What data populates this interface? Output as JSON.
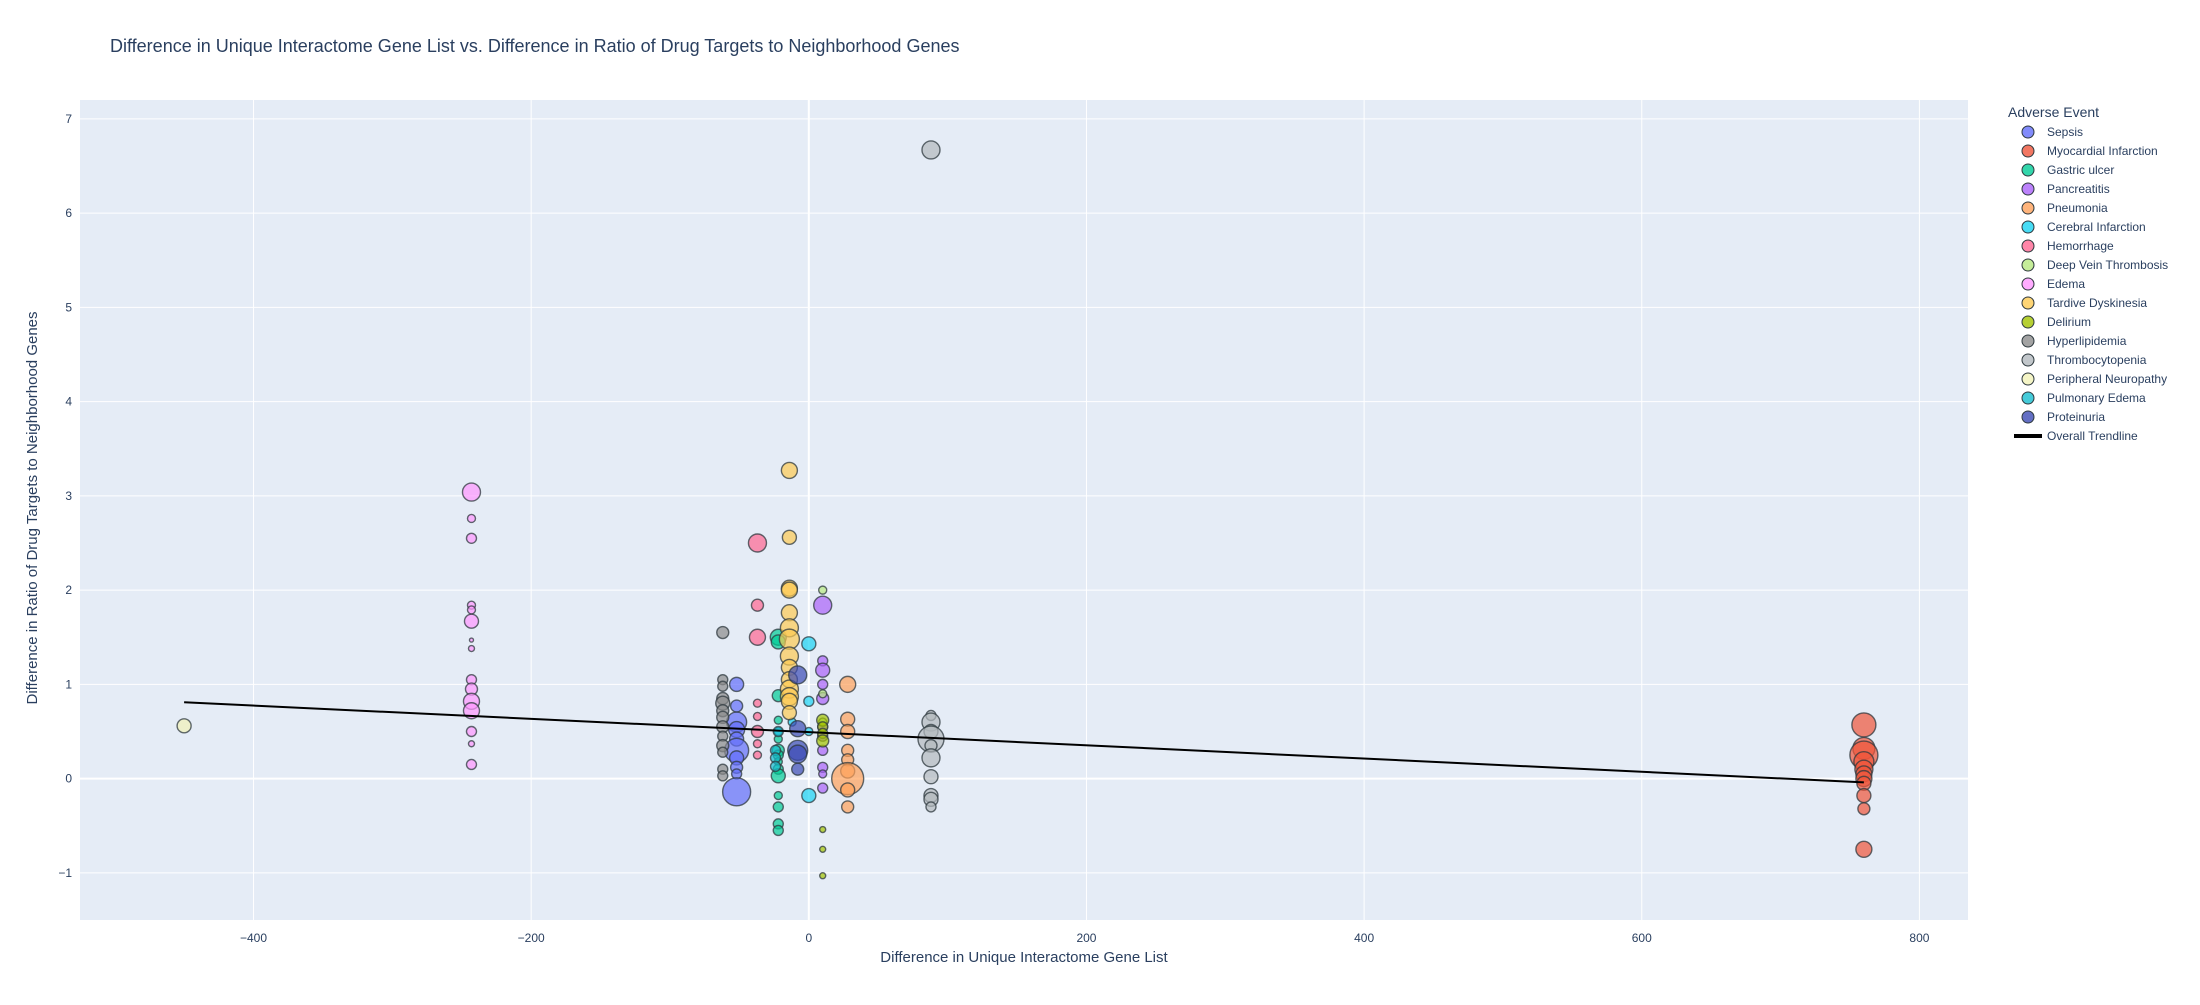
{
  "chart_data": {
    "type": "scatter",
    "title": "Difference in Unique Interactome Gene List vs. Difference in Ratio of Drug Targets to Neighborhood Genes",
    "xlabel": "Difference in Unique Interactome Gene List",
    "ylabel": "Difference in Ratio of Drug Targets to Neighborhood Genes",
    "xlim": [
      -525,
      835
    ],
    "ylim": [
      -1.5,
      7.2
    ],
    "x_ticks": [
      -400,
      -200,
      0,
      200,
      400,
      600,
      800
    ],
    "y_ticks": [
      -1,
      0,
      1,
      2,
      3,
      4,
      5,
      6,
      7
    ],
    "x_tick_labels": [
      "−400",
      "−200",
      "0",
      "200",
      "400",
      "600",
      "800"
    ],
    "y_tick_labels": [
      "−1",
      "0",
      "1",
      "2",
      "3",
      "4",
      "5",
      "6",
      "7"
    ],
    "grid": true,
    "legend_title": "Adverse Event",
    "legend_position": "right",
    "series": [
      {
        "name": "Sepsis",
        "color": "#636efa",
        "points": [
          [
            -52,
            1.0,
            7
          ],
          [
            -52,
            0.77,
            6
          ],
          [
            -52,
            0.6,
            10
          ],
          [
            -52,
            0.52,
            8
          ],
          [
            -52,
            0.42,
            7
          ],
          [
            -52,
            0.3,
            12
          ],
          [
            -52,
            0.22,
            7
          ],
          [
            -52,
            0.12,
            6
          ],
          [
            -52,
            0.05,
            5
          ],
          [
            -52,
            -0.14,
            14
          ]
        ]
      },
      {
        "name": "Myocardial Infarction",
        "color": "#ef553b",
        "points": [
          [
            760,
            0.57,
            12
          ],
          [
            760,
            0.32,
            11
          ],
          [
            760,
            0.25,
            14
          ],
          [
            760,
            0.18,
            10
          ],
          [
            760,
            0.1,
            9
          ],
          [
            760,
            0.05,
            8
          ],
          [
            760,
            0.0,
            8
          ],
          [
            760,
            -0.05,
            7
          ],
          [
            760,
            -0.18,
            7
          ],
          [
            760,
            -0.32,
            6
          ],
          [
            760,
            -0.75,
            8
          ]
        ]
      },
      {
        "name": "Gastric ulcer",
        "color": "#00cc96",
        "points": [
          [
            -22,
            1.5,
            8
          ],
          [
            -22,
            1.45,
            7
          ],
          [
            -22,
            0.88,
            6
          ],
          [
            -22,
            0.62,
            4
          ],
          [
            -22,
            0.42,
            4
          ],
          [
            -22,
            0.3,
            6
          ],
          [
            -22,
            0.25,
            5
          ],
          [
            -22,
            0.18,
            4
          ],
          [
            -22,
            0.1,
            5
          ],
          [
            -22,
            0.03,
            7
          ],
          [
            -22,
            -0.18,
            4
          ],
          [
            -22,
            -0.3,
            5
          ],
          [
            -22,
            -0.48,
            5
          ],
          [
            -22,
            -0.55,
            5
          ]
        ]
      },
      {
        "name": "Pancreatitis",
        "color": "#ab63fa",
        "points": [
          [
            10,
            1.84,
            9
          ],
          [
            10,
            1.25,
            5
          ],
          [
            10,
            1.15,
            7
          ],
          [
            10,
            1.0,
            5
          ],
          [
            10,
            0.85,
            6
          ],
          [
            10,
            0.55,
            5
          ],
          [
            10,
            0.45,
            5
          ],
          [
            10,
            0.3,
            5
          ],
          [
            10,
            0.12,
            5
          ],
          [
            10,
            0.05,
            4
          ],
          [
            10,
            -0.1,
            5
          ]
        ]
      },
      {
        "name": "Pneumonia",
        "color": "#ffa15a",
        "points": [
          [
            28,
            1.0,
            8
          ],
          [
            28,
            0.63,
            7
          ],
          [
            28,
            0.5,
            7
          ],
          [
            28,
            0.3,
            6
          ],
          [
            28,
            0.2,
            6
          ],
          [
            28,
            0.08,
            7
          ],
          [
            28,
            0.0,
            16
          ],
          [
            28,
            -0.12,
            7
          ],
          [
            28,
            -0.3,
            6
          ]
        ]
      },
      {
        "name": "Cerebral Infarction",
        "color": "#19d3f3",
        "points": [
          [
            0,
            1.43,
            7
          ],
          [
            0,
            0.82,
            5
          ],
          [
            0,
            0.5,
            4
          ],
          [
            0,
            -0.18,
            7
          ],
          [
            -12,
            0.6,
            4
          ],
          [
            -22,
            0.5,
            4
          ]
        ]
      },
      {
        "name": "Hemorrhage",
        "color": "#ff6692",
        "points": [
          [
            -37,
            2.5,
            9
          ],
          [
            -37,
            1.84,
            6
          ],
          [
            -37,
            1.5,
            8
          ],
          [
            -37,
            0.8,
            4
          ],
          [
            -37,
            0.66,
            4
          ],
          [
            -37,
            0.5,
            6
          ],
          [
            -37,
            0.37,
            4
          ],
          [
            -37,
            0.25,
            4
          ]
        ]
      },
      {
        "name": "Deep Vein Thrombosis",
        "color": "#b6e880",
        "points": [
          [
            10,
            2.0,
            4
          ],
          [
            10,
            0.9,
            4
          ],
          [
            10,
            0.6,
            4
          ]
        ]
      },
      {
        "name": "Edema",
        "color": "#ff97ff",
        "points": [
          [
            -243,
            3.04,
            9
          ],
          [
            -243,
            2.76,
            4
          ],
          [
            -243,
            2.55,
            5
          ],
          [
            -243,
            1.84,
            4
          ],
          [
            -243,
            1.79,
            4
          ],
          [
            -243,
            1.67,
            7
          ],
          [
            -243,
            1.47,
            2
          ],
          [
            -243,
            1.38,
            3
          ],
          [
            -243,
            1.05,
            5
          ],
          [
            -243,
            0.95,
            6
          ],
          [
            -243,
            0.82,
            8
          ],
          [
            -243,
            0.72,
            8
          ],
          [
            -243,
            0.5,
            5
          ],
          [
            -243,
            0.37,
            3
          ],
          [
            -243,
            0.15,
            5
          ]
        ]
      },
      {
        "name": "Tardive Dyskinesia",
        "color": "#fecb52",
        "points": [
          [
            -14,
            3.27,
            8
          ],
          [
            -14,
            2.56,
            7
          ],
          [
            -14,
            2.02,
            8
          ],
          [
            -14,
            2.0,
            8
          ],
          [
            -14,
            1.76,
            8
          ],
          [
            -14,
            1.6,
            9
          ],
          [
            -14,
            1.48,
            10
          ],
          [
            -14,
            1.3,
            9
          ],
          [
            -14,
            1.18,
            8
          ],
          [
            -14,
            1.05,
            8
          ],
          [
            -14,
            0.95,
            9
          ],
          [
            -14,
            0.87,
            9
          ],
          [
            -14,
            0.82,
            8
          ],
          [
            -14,
            0.7,
            7
          ]
        ]
      },
      {
        "name": "Delirium",
        "color": "#a4c400",
        "points": [
          [
            10,
            0.62,
            6
          ],
          [
            10,
            0.55,
            5
          ],
          [
            10,
            0.48,
            5
          ],
          [
            10,
            0.4,
            6
          ],
          [
            10,
            -0.54,
            3
          ],
          [
            10,
            -0.75,
            3
          ],
          [
            10,
            -1.03,
            3
          ]
        ]
      },
      {
        "name": "Hyperlipidemia",
        "color": "#8c8c8c",
        "points": [
          [
            -62,
            1.55,
            6
          ],
          [
            -62,
            1.05,
            5
          ],
          [
            -62,
            0.98,
            5
          ],
          [
            -62,
            0.85,
            6
          ],
          [
            -62,
            0.8,
            7
          ],
          [
            -62,
            0.72,
            6
          ],
          [
            -62,
            0.65,
            6
          ],
          [
            -62,
            0.55,
            6
          ],
          [
            -62,
            0.45,
            5
          ],
          [
            -62,
            0.35,
            6
          ],
          [
            -62,
            0.28,
            5
          ],
          [
            -62,
            0.1,
            5
          ],
          [
            -62,
            0.03,
            5
          ]
        ]
      },
      {
        "name": "Thrombocytopenia",
        "color": "#b3b9be",
        "points": [
          [
            88,
            6.67,
            9
          ],
          [
            88,
            0.67,
            5
          ],
          [
            88,
            0.6,
            9
          ],
          [
            88,
            0.5,
            7
          ],
          [
            88,
            0.42,
            13
          ],
          [
            88,
            0.35,
            6
          ],
          [
            88,
            0.22,
            9
          ],
          [
            88,
            0.02,
            7
          ],
          [
            88,
            -0.18,
            7
          ],
          [
            88,
            -0.22,
            7
          ],
          [
            88,
            -0.3,
            5
          ]
        ]
      },
      {
        "name": "Peripheral Neuropathy",
        "color": "#f2f2b8",
        "points": [
          [
            -450,
            0.56,
            7
          ]
        ]
      },
      {
        "name": "Pulmonary Edema",
        "color": "#17becf",
        "points": [
          [
            -24,
            0.3,
            5
          ],
          [
            -24,
            0.22,
            5
          ],
          [
            -24,
            0.13,
            5
          ],
          [
            -22,
            0.5,
            5
          ]
        ]
      },
      {
        "name": "Proteinuria",
        "color": "#3c4bb5",
        "points": [
          [
            -8,
            1.1,
            9
          ],
          [
            -8,
            0.53,
            8
          ],
          [
            -8,
            0.3,
            10
          ],
          [
            -8,
            0.26,
            9
          ],
          [
            -8,
            0.1,
            6
          ]
        ]
      }
    ],
    "trendline": {
      "name": "Overall Trendline",
      "color": "#000000",
      "points": [
        [
          -450,
          0.81
        ],
        [
          760,
          -0.04
        ]
      ]
    }
  }
}
